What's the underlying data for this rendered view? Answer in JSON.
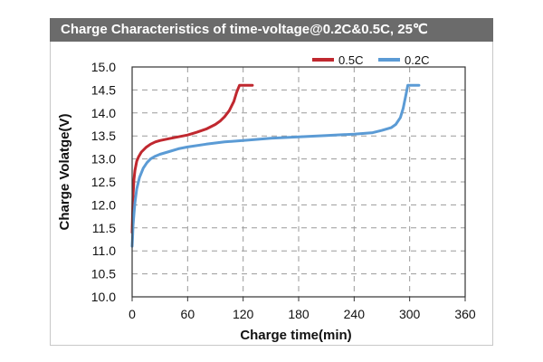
{
  "chart_data": {
    "type": "line",
    "title": "Charge Characteristics of time-voltage@0.2C&0.5C, 25℃",
    "xlabel": "Charge time(min)",
    "ylabel": "Charge Volatge(V)",
    "xlim": [
      0,
      360
    ],
    "ylim": [
      10.0,
      15.0
    ],
    "xticks": [
      "0",
      "60",
      "120",
      "180",
      "240",
      "300",
      "360"
    ],
    "yticks": [
      "10.0",
      "10.5",
      "11.0",
      "11.5",
      "12.0",
      "12.5",
      "13.0",
      "13.5",
      "14.0",
      "14.5",
      "15.0"
    ],
    "grid": true,
    "legend_position": "top-right",
    "series": [
      {
        "name": "0.5C",
        "color": "#c0282f",
        "x": [
          0,
          0.5,
          1,
          2,
          3,
          5,
          7,
          10,
          15,
          20,
          25,
          30,
          40,
          50,
          60,
          70,
          80,
          90,
          95,
          100,
          105,
          110,
          113,
          116,
          118,
          120,
          125,
          130
        ],
        "y": [
          11.4,
          11.8,
          12.2,
          12.55,
          12.75,
          12.95,
          13.05,
          13.15,
          13.25,
          13.32,
          13.37,
          13.4,
          13.44,
          13.48,
          13.52,
          13.58,
          13.65,
          13.75,
          13.82,
          13.92,
          14.05,
          14.25,
          14.45,
          14.6,
          14.6,
          14.6,
          14.6,
          14.6
        ]
      },
      {
        "name": "0.2C",
        "color": "#5b9bd5",
        "x": [
          0,
          0.5,
          1,
          2,
          3,
          5,
          8,
          12,
          16,
          20,
          25,
          30,
          40,
          50,
          60,
          80,
          100,
          120,
          150,
          180,
          210,
          240,
          260,
          270,
          280,
          285,
          290,
          293,
          296,
          298,
          300,
          302,
          305,
          310
        ],
        "y": [
          11.1,
          11.3,
          11.55,
          11.8,
          12.05,
          12.35,
          12.6,
          12.8,
          12.92,
          13.0,
          13.06,
          13.1,
          13.16,
          13.22,
          13.26,
          13.32,
          13.37,
          13.4,
          13.45,
          13.48,
          13.51,
          13.54,
          13.57,
          13.62,
          13.68,
          13.75,
          13.9,
          14.1,
          14.4,
          14.6,
          14.6,
          14.6,
          14.6,
          14.6
        ]
      }
    ]
  }
}
